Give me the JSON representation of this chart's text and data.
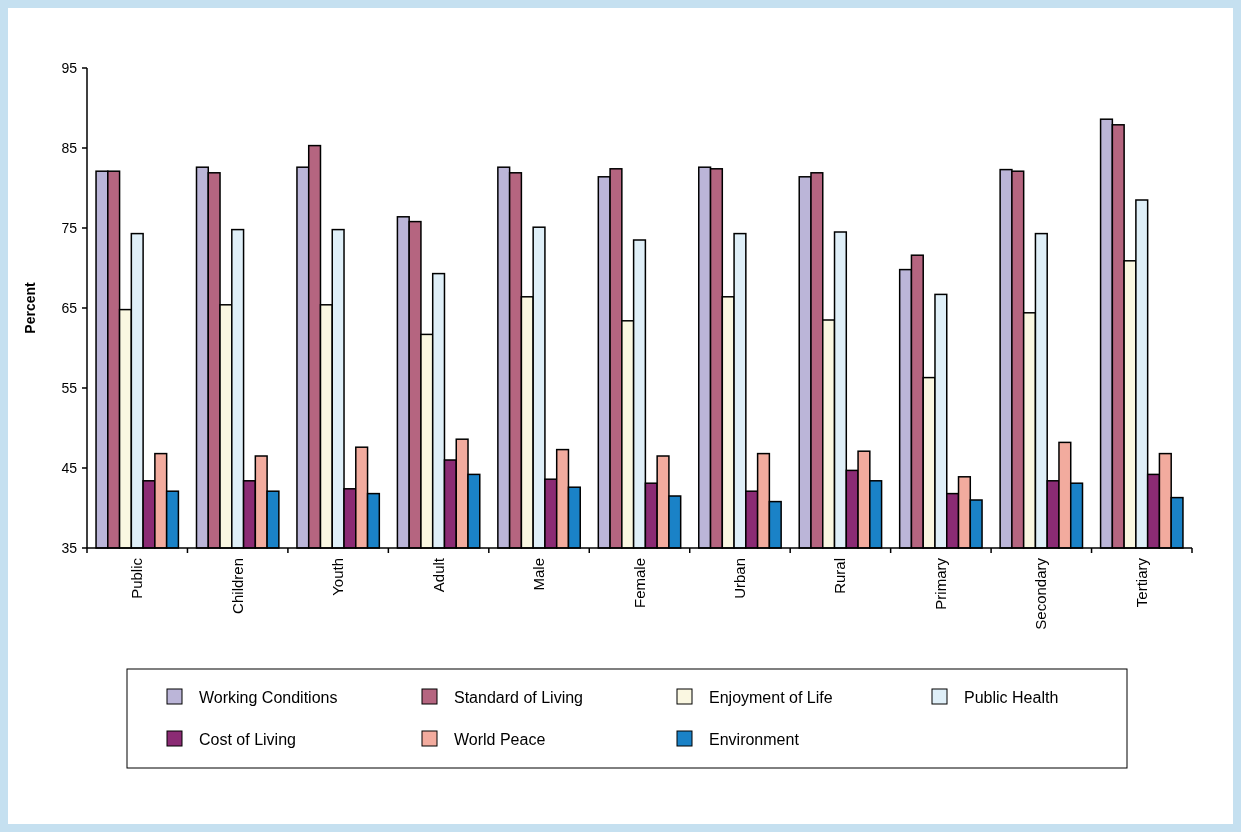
{
  "chart_data": {
    "type": "bar",
    "ylabel": "Percent",
    "categories": [
      "Public",
      "Children",
      "Youth",
      "Adult",
      "Male",
      "Female",
      "Urban",
      "Rural",
      "Primary",
      "Secondary",
      "Tertiary"
    ],
    "series": [
      {
        "name": "Working Conditions",
        "color": "#bbb5d8",
        "values": [
          82.1,
          82.6,
          82.6,
          76.4,
          82.6,
          81.4,
          82.6,
          81.4,
          69.8,
          82.3,
          88.6
        ]
      },
      {
        "name": "Standard of Living",
        "color": "#b56580",
        "values": [
          82.1,
          81.9,
          85.3,
          75.8,
          81.9,
          82.4,
          82.4,
          81.9,
          71.6,
          82.1,
          87.9
        ]
      },
      {
        "name": "Enjoyment of Life",
        "color": "#faf7e1",
        "values": [
          64.8,
          65.4,
          65.4,
          61.7,
          66.4,
          63.4,
          66.4,
          63.5,
          56.3,
          64.4,
          70.9
        ]
      },
      {
        "name": "Public Health",
        "color": "#dfeff8",
        "values": [
          74.3,
          74.8,
          74.8,
          69.3,
          75.1,
          73.5,
          74.3,
          74.5,
          66.7,
          74.3,
          78.5
        ]
      },
      {
        "name": "Cost of Living",
        "color": "#8b2b74",
        "values": [
          43.4,
          43.4,
          42.4,
          46.0,
          43.6,
          43.1,
          42.1,
          44.7,
          41.8,
          43.4,
          44.2
        ]
      },
      {
        "name": "World Peace",
        "color": "#f2ab9e",
        "values": [
          46.8,
          46.5,
          47.6,
          48.6,
          47.3,
          46.5,
          46.8,
          47.1,
          43.9,
          48.2,
          46.8
        ]
      },
      {
        "name": "Environment",
        "color": "#1a82c7",
        "values": [
          42.1,
          42.1,
          41.8,
          44.2,
          42.6,
          41.5,
          40.8,
          43.4,
          41.0,
          43.1,
          41.3
        ]
      }
    ],
    "ylim": [
      35,
      95
    ],
    "yticks": [
      35,
      45,
      55,
      65,
      75,
      85,
      95
    ],
    "grid": false,
    "legend": "bottom"
  }
}
